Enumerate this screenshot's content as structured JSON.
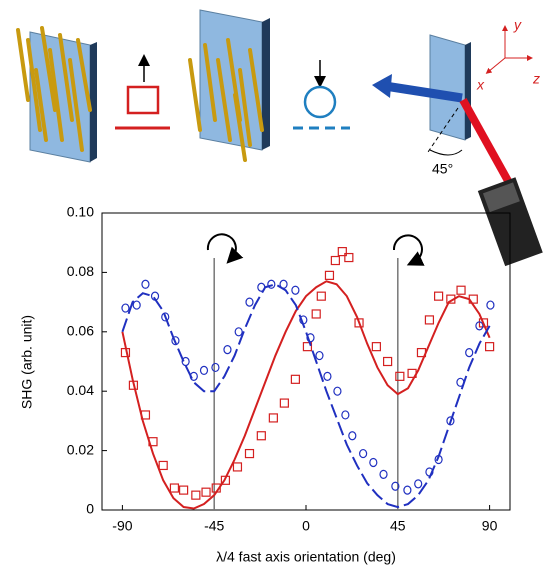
{
  "chart_data": {
    "type": "scatter",
    "xlabel": "λ/4 fast axis orientation (deg)",
    "ylabel": "SHG (arb. unit)",
    "xlim": [
      -100,
      100
    ],
    "ylim": [
      0,
      0.1
    ],
    "xticks": [
      -90,
      -45,
      0,
      45,
      90
    ],
    "yticks": [
      0,
      0.02,
      0.04,
      0.06,
      0.08,
      {
        "value": 0.1,
        "label": "0.10"
      }
    ],
    "vlines": [
      -45,
      45
    ],
    "annotations": {
      "angle": "45°",
      "x": "x",
      "y": "y",
      "z": "z"
    },
    "series": [
      {
        "color": "#d42020",
        "marker": "square",
        "x": [
          -88.5,
          -84.6,
          -78.7,
          -75,
          -70,
          -64.5,
          -60,
          -54,
          -49,
          -44,
          -39.5,
          -33.6,
          -27.7,
          -21.9,
          -16,
          -10.6,
          -5.2,
          0.7,
          5,
          7.5,
          11.5,
          14.4,
          17.8,
          21,
          26,
          34.5,
          40,
          46,
          52,
          56.6,
          60.5,
          65,
          71,
          76,
          82,
          87,
          90
        ],
        "values": [
          0.053,
          0.042,
          0.032,
          0.023,
          0.015,
          0.0074,
          0.0067,
          0.005,
          0.006,
          0.0074,
          0.01,
          0.0145,
          0.019,
          0.025,
          0.031,
          0.036,
          0.044,
          0.055,
          0.066,
          0.072,
          0.079,
          0.084,
          0.087,
          0.085,
          0.063,
          0.055,
          0.05,
          0.045,
          0.046,
          0.053,
          0.064,
          0.072,
          0.071,
          0.074,
          0.071,
          0.063,
          0.055
        ]
      },
      {
        "color": "#2030c0",
        "marker": "circle",
        "x": [
          -88.5,
          -83,
          -78.7,
          -74,
          -69,
          -64,
          -59,
          -55,
          -50,
          -44.4,
          -38.5,
          -33,
          -27.7,
          -21.9,
          -17,
          -11,
          -5.2,
          -1.3,
          2.2,
          6.6,
          10.5,
          15.4,
          19.3,
          22.7,
          28,
          33,
          38,
          43.8,
          49.7,
          55,
          60.5,
          65,
          70.8,
          75.7,
          80,
          85,
          90.4
        ],
        "values": [
          0.068,
          0.069,
          0.076,
          0.072,
          0.065,
          0.057,
          0.05,
          0.045,
          0.047,
          0.048,
          0.054,
          0.06,
          0.07,
          0.075,
          0.076,
          0.076,
          0.074,
          0.064,
          0.058,
          0.052,
          0.045,
          0.04,
          0.032,
          0.025,
          0.019,
          0.016,
          0.012,
          0.008,
          0.0067,
          0.0088,
          0.0128,
          0.017,
          0.03,
          0.043,
          0.053,
          0.062,
          0.069
        ]
      },
      {
        "color": "#d42020",
        "style": "solid",
        "x": [
          -90,
          -85,
          -80,
          -75,
          -70,
          -65,
          -60,
          -55,
          -50,
          -45,
          -40,
          -35,
          -30,
          -25,
          -20,
          -15,
          -10,
          -5,
          0,
          5,
          10,
          15,
          20,
          25,
          30,
          35,
          40,
          45,
          50,
          55,
          60,
          65,
          70,
          75,
          80,
          85,
          90
        ],
        "values": [
          0.06,
          0.044,
          0.03,
          0.019,
          0.01,
          0.004,
          0.001,
          0.0005,
          0.002,
          0.005,
          0.01,
          0.017,
          0.025,
          0.034,
          0.043,
          0.052,
          0.06,
          0.067,
          0.072,
          0.075,
          0.077,
          0.076,
          0.072,
          0.065,
          0.056,
          0.048,
          0.042,
          0.039,
          0.041,
          0.047,
          0.055,
          0.063,
          0.07,
          0.072,
          0.071,
          0.066,
          0.058
        ]
      },
      {
        "color": "#2030c0",
        "style": "dashed",
        "x": [
          -90,
          -85,
          -80,
          -75,
          -70,
          -65,
          -60,
          -55,
          -50,
          -45,
          -40,
          -35,
          -30,
          -25,
          -20,
          -15,
          -10,
          -5,
          0,
          5,
          10,
          15,
          20,
          25,
          30,
          35,
          40,
          45,
          50,
          55,
          60,
          65,
          70,
          75,
          80,
          85,
          90
        ],
        "values": [
          0.06,
          0.07,
          0.073,
          0.072,
          0.067,
          0.058,
          0.05,
          0.043,
          0.04,
          0.04,
          0.045,
          0.052,
          0.061,
          0.069,
          0.075,
          0.076,
          0.074,
          0.069,
          0.06,
          0.05,
          0.04,
          0.031,
          0.022,
          0.015,
          0.009,
          0.005,
          0.002,
          0.001,
          0.002,
          0.005,
          0.01,
          0.018,
          0.028,
          0.038,
          0.048,
          0.056,
          0.062
        ]
      }
    ]
  }
}
